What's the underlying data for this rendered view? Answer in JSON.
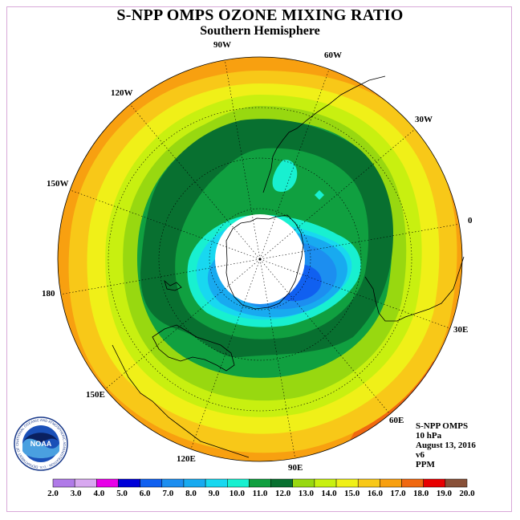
{
  "title": "S-NPP OMPS OZONE MIXING RATIO",
  "subtitle": "Southern Hemisphere",
  "longitude_labels": {
    "lon_90w": "90W",
    "lon_60w": "60W",
    "lon_120w": "120W",
    "lon_30w": "30W",
    "lon_150w": "150W",
    "lon_0": "0",
    "lon_180": "180",
    "lon_30e": "30E",
    "lon_150e": "150E",
    "lon_60e": "60E",
    "lon_120e": "120E",
    "lon_90e": "90E"
  },
  "info": {
    "instrument": "S-NPP OMPS",
    "level": "10 hPa",
    "date": "August 13, 2016",
    "version": "v6",
    "units": "PPM"
  },
  "logo": {
    "text": "NOAA",
    "ring_text": "NATIONAL OCEANIC AND ATMOSPHERIC ADMINISTRATION · U.S. DEPARTMENT OF COMMERCE"
  },
  "colorbar": {
    "levels": [
      "2.0",
      "3.0",
      "4.0",
      "5.0",
      "6.0",
      "7.0",
      "8.0",
      "9.0",
      "10.0",
      "11.0",
      "12.0",
      "13.0",
      "14.0",
      "15.0",
      "16.0",
      "17.0",
      "18.0",
      "19.0",
      "20.0"
    ],
    "colors": [
      "#b07ae8",
      "#d8a8f0",
      "#e800e8",
      "#0000d8",
      "#1060f0",
      "#1c8ef0",
      "#18aaf0",
      "#18d8f0",
      "#18f0d0",
      "#10a040",
      "#087030",
      "#98d810",
      "#c8f010",
      "#f0f018",
      "#f8c818",
      "#f8a010",
      "#f06810",
      "#e80000",
      "#885038"
    ]
  },
  "map_colors": {
    "background": "#ffffff",
    "c_orange": "#f8a010",
    "c_amber": "#f8c818",
    "c_yellow": "#f0f018",
    "c_lime": "#c8f010",
    "c_green": "#98d810",
    "c_midgreen": "#10a040",
    "c_darkgreen": "#087030",
    "c_aqua": "#18f0d0",
    "c_cyan": "#18d8f0",
    "c_sky": "#18aaf0",
    "c_blue": "#1c8ef0",
    "c_deep": "#1060f0",
    "c_dark_orange": "#f06810"
  }
}
